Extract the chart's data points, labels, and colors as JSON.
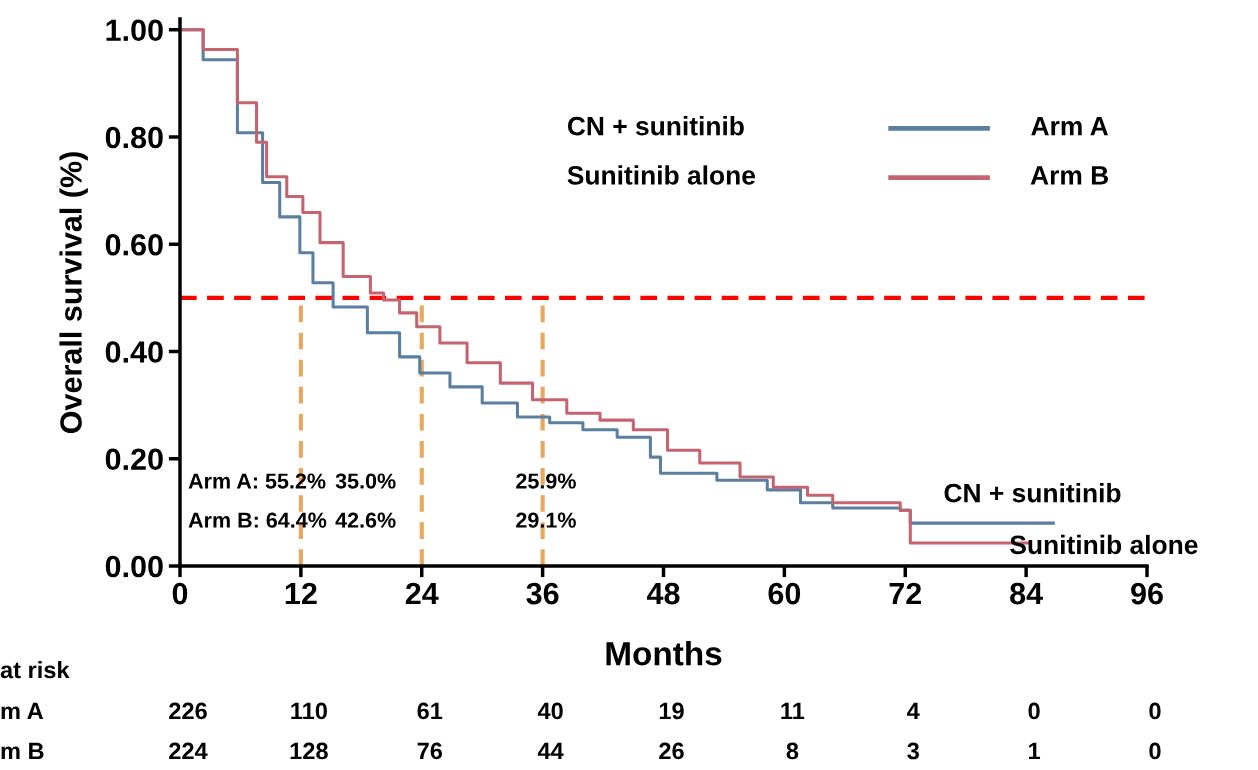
{
  "chart_data": {
    "type": "step",
    "xlabel": "Months",
    "ylabel": "Overall survival (%)",
    "xlim": [
      0,
      96
    ],
    "xticks": [
      0,
      12,
      24,
      36,
      48,
      60,
      72,
      84,
      96
    ],
    "ylim": [
      0,
      1.02
    ],
    "yticks": [
      {
        "value": 0,
        "label": "0.00"
      },
      {
        "value": 0.2,
        "label": "0.20"
      },
      {
        "value": 0.4,
        "label": "0.40"
      },
      {
        "value": 0.6,
        "label": "0.60"
      },
      {
        "value": 0.8,
        "label": "0.80"
      },
      {
        "value": 1.0,
        "label": "1.00"
      }
    ],
    "grid": false,
    "legend": "top right",
    "marker": "none",
    "line_style": "solid",
    "series": [
      {
        "name": "Arm A",
        "color": "#5b7fa0",
        "x": [
          0,
          2.3,
          5.7,
          8.2,
          9.9,
          11.9,
          13.2,
          15.2,
          18.6,
          21.8,
          23.8,
          26.8,
          30,
          33.5,
          36.7,
          40,
          43.4,
          46.7,
          47.7,
          53.3,
          58.3,
          61.6,
          64.8,
          71.5,
          72.5,
          86.7
        ],
        "values": [
          1.0,
          0.944,
          0.808,
          0.715,
          0.651,
          0.584,
          0.528,
          0.483,
          0.435,
          0.39,
          0.36,
          0.334,
          0.304,
          0.278,
          0.267,
          0.254,
          0.24,
          0.203,
          0.173,
          0.16,
          0.142,
          0.118,
          0.108,
          0.104,
          0.08,
          0.08
        ]
      },
      {
        "name": "Arm B",
        "color": "#c46470",
        "x": [
          0,
          2.3,
          5.7,
          7.6,
          8.6,
          10.6,
          12.2,
          13.9,
          16.2,
          18.9,
          20.2,
          21.8,
          23.5,
          25.8,
          28.5,
          31.8,
          35,
          38.4,
          41.7,
          45,
          48.4,
          51.6,
          55.6,
          58.9,
          62.3,
          64.8,
          71.5,
          72.5,
          84.4
        ],
        "values": [
          1.0,
          0.963,
          0.864,
          0.79,
          0.726,
          0.689,
          0.659,
          0.603,
          0.54,
          0.509,
          0.496,
          0.472,
          0.446,
          0.416,
          0.379,
          0.341,
          0.31,
          0.285,
          0.272,
          0.254,
          0.216,
          0.192,
          0.166,
          0.147,
          0.132,
          0.118,
          0.104,
          0.043,
          0.043
        ]
      }
    ],
    "ref_lines": [
      {
        "axis": "y",
        "value": 0.5,
        "color": "#ff0000",
        "line_style": "dashed"
      },
      {
        "axis": "x",
        "value": 12,
        "color": "#e8a860",
        "line_style": "dashed"
      },
      {
        "axis": "x",
        "value": 24,
        "color": "#e8a860",
        "line_style": "dashed"
      },
      {
        "axis": "x",
        "value": 36,
        "color": "#e8a860",
        "line_style": "dashed"
      }
    ],
    "annotations": [
      "CN + sunitinib",
      "Sunitinib alone",
      {
        "text": "CN + sunitinib",
        "x": 86.7,
        "y": 0.08
      },
      {
        "text": "Sunitinib alone",
        "x": 84.4,
        "y": 0.043
      },
      "Arm A: 55.2%",
      "35.0%",
      "25.9%",
      "Arm B: 64.4%",
      "42.6%",
      "29.1%",
      "at risk",
      "m A",
      "226",
      "110",
      "61",
      "40",
      "19",
      "11",
      "4",
      "0",
      "0",
      "m B",
      "224",
      "128",
      "76",
      "44",
      "26",
      "8",
      "3",
      "1",
      "0"
    ]
  }
}
